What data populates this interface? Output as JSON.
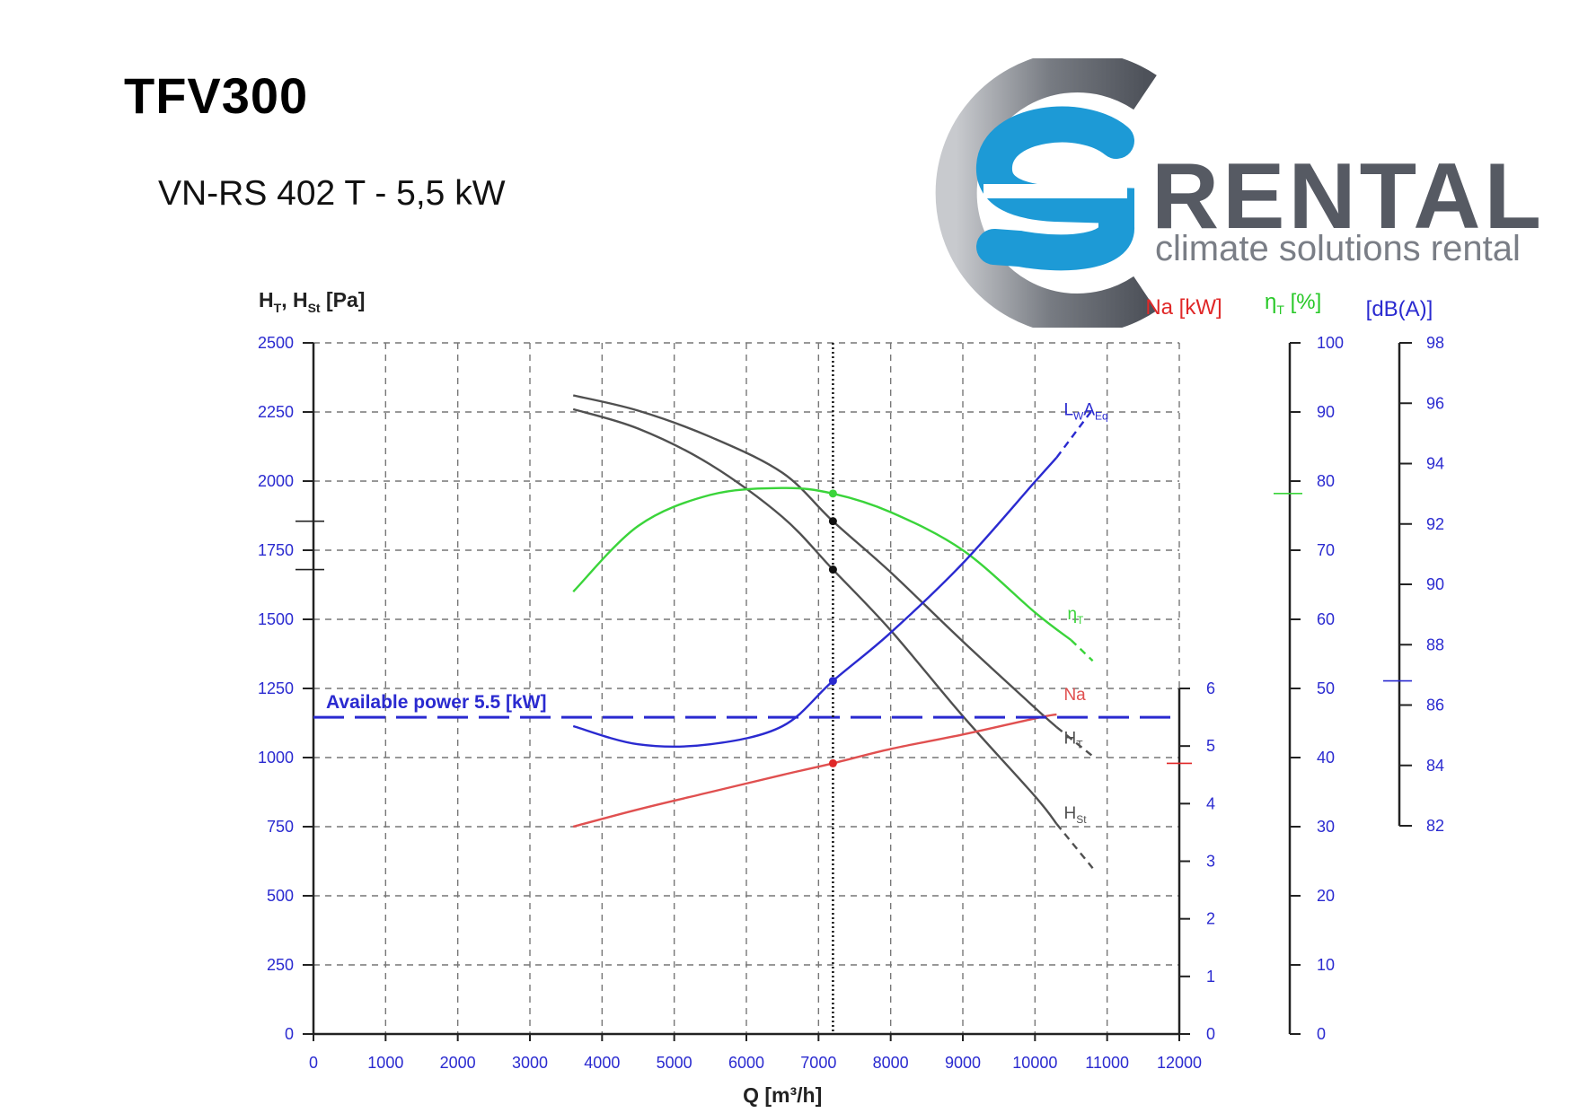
{
  "header": {
    "title": "TFV300",
    "subtitle": "VN-RS 402 T - 5,5 kW"
  },
  "brand": {
    "word": "RENTAL",
    "tagline": "climate solutions rental",
    "colors": {
      "ring": "#6a6e76",
      "s": "#1d9ad6",
      "text": "#565a63"
    }
  },
  "chart_data": {
    "type": "line",
    "xlabel": "Q [m³/h]",
    "xlim": [
      0,
      12000
    ],
    "x_ticks": [
      "0",
      "1000",
      "2000",
      "3000",
      "4000",
      "5000",
      "6000",
      "7000",
      "8000",
      "9000",
      "10000",
      "11000",
      "12000"
    ],
    "grid": true,
    "axes": {
      "pressure": {
        "label_main": "H",
        "sub1": "T",
        "sep": ", H",
        "sub2": "St",
        "unit": " [Pa]",
        "range": [
          0,
          2500
        ],
        "ticks": [
          "0",
          "250",
          "500",
          "750",
          "1000",
          "1250",
          "1500",
          "1750",
          "2000",
          "2250",
          "2500"
        ],
        "color": "#2a2ad0"
      },
      "power": {
        "label": "Na [kW]",
        "range": [
          0,
          6
        ],
        "ticks": [
          "0",
          "1",
          "2",
          "3",
          "4",
          "5",
          "6"
        ],
        "color": "#e02828"
      },
      "efficiency": {
        "label_main": "η",
        "sub": "T",
        "unit": " [%]",
        "range": [
          0,
          100
        ],
        "ticks": [
          "0",
          "10",
          "20",
          "30",
          "40",
          "50",
          "60",
          "70",
          "80",
          "90",
          "100"
        ],
        "color": "#28c828"
      },
      "sound": {
        "label": "[dB(A)]",
        "range": [
          82,
          98
        ],
        "ticks": [
          "82",
          "84",
          "86",
          "88",
          "90",
          "92",
          "94",
          "96",
          "98"
        ],
        "color": "#2a2ad0"
      }
    },
    "series": [
      {
        "name_main": "H",
        "sub": "T",
        "axis": "pressure",
        "color": "#505050",
        "points": [
          [
            3600,
            2310
          ],
          [
            4500,
            2255
          ],
          [
            5500,
            2160
          ],
          [
            6500,
            2030
          ],
          [
            7200,
            1855
          ],
          [
            8000,
            1670
          ],
          [
            9000,
            1420
          ],
          [
            10000,
            1180
          ],
          [
            10300,
            1110
          ]
        ],
        "dashed": [
          [
            10300,
            1110
          ],
          [
            10800,
            1005
          ]
        ]
      },
      {
        "name_main": "H",
        "sub": "St",
        "axis": "pressure",
        "color": "#505050",
        "points": [
          [
            3600,
            2260
          ],
          [
            4500,
            2190
          ],
          [
            5500,
            2060
          ],
          [
            6500,
            1870
          ],
          [
            7200,
            1680
          ],
          [
            8000,
            1460
          ],
          [
            9000,
            1150
          ],
          [
            10000,
            860
          ],
          [
            10300,
            760
          ]
        ],
        "dashed": [
          [
            10300,
            760
          ],
          [
            10800,
            600
          ]
        ]
      },
      {
        "name_main": "η",
        "sub": "T",
        "axis": "efficiency",
        "color": "#3ad43a",
        "points": [
          [
            3600,
            64
          ],
          [
            4500,
            73.5
          ],
          [
            5500,
            78
          ],
          [
            6500,
            79
          ],
          [
            7200,
            78.2
          ],
          [
            8000,
            75.5
          ],
          [
            9000,
            70
          ],
          [
            10000,
            61
          ],
          [
            10500,
            57
          ]
        ],
        "dashed": [
          [
            10500,
            57
          ],
          [
            10800,
            54
          ]
        ]
      },
      {
        "name_main": "L",
        "sub": "W",
        "extra": "A",
        "sub2": "Eq",
        "axis": "sound",
        "color": "#2a2ad0",
        "points": [
          [
            3600,
            85.3
          ],
          [
            4500,
            84.7
          ],
          [
            5500,
            84.7
          ],
          [
            6500,
            85.3
          ],
          [
            7200,
            86.8
          ],
          [
            8000,
            88.4
          ],
          [
            9000,
            90.7
          ],
          [
            10000,
            93.4
          ],
          [
            10300,
            94.2
          ]
        ],
        "dashed": [
          [
            10300,
            94.2
          ],
          [
            10800,
            95.8
          ]
        ]
      },
      {
        "name_main": "Na",
        "sub": "",
        "axis": "power",
        "color": "#e05050",
        "points": [
          [
            3600,
            3.6
          ],
          [
            4500,
            3.9
          ],
          [
            5500,
            4.2
          ],
          [
            6500,
            4.5
          ],
          [
            7200,
            4.7
          ],
          [
            8000,
            4.95
          ],
          [
            9000,
            5.2
          ],
          [
            10000,
            5.48
          ],
          [
            10300,
            5.55
          ]
        ],
        "dashed": []
      }
    ],
    "operating_point": {
      "q": 7200,
      "ht": 1855,
      "hst": 1680,
      "eta": 78.2,
      "sound": 86.8,
      "na": 4.7
    },
    "reference_line": {
      "label": "Available power 5.5 [kW]",
      "axis": "power",
      "value": 5.5
    }
  }
}
